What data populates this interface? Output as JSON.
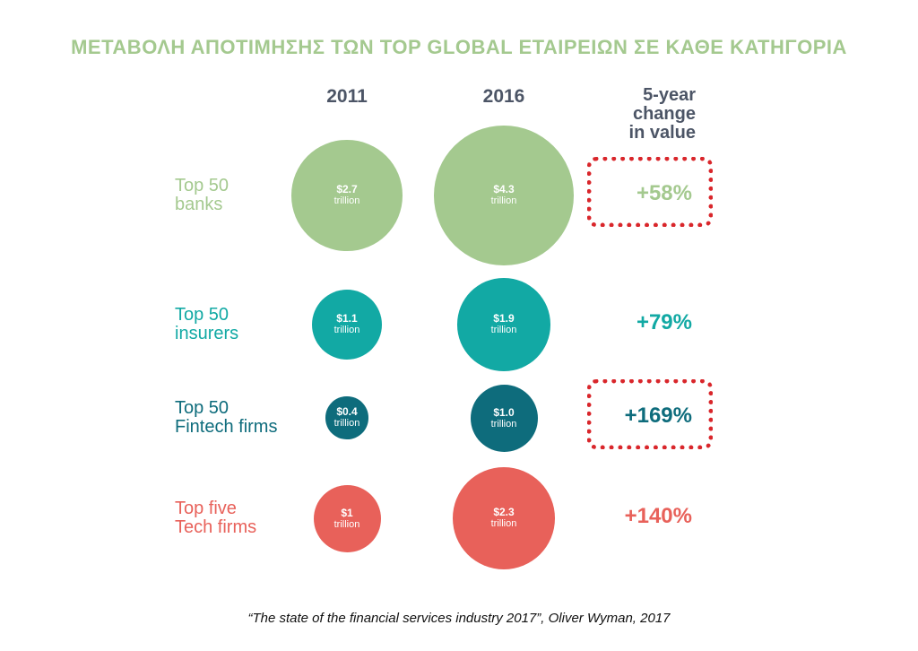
{
  "title": "ΜΕΤΑΒΟΛΗ ΑΠΟΤΙΜΗΣΗΣ ΤΩΝ TOP GLOBAL ΕΤΑΙΡΕΙΩΝ ΣΕ ΚΑΘΕ ΚΑΤΗΓΟΡΙΑ",
  "columns": {
    "y2011": "2011",
    "y2016": "2016"
  },
  "change_header": [
    "5-year",
    "change",
    "in value"
  ],
  "source": "“The state of the financial services industry 2017”, Oliver Wyman, 2017",
  "colors": {
    "title": "#a4c98f",
    "header": "#4c5566",
    "highlight": "#d9262b"
  },
  "chart_data": {
    "type": "bubble",
    "title": "ΜΕΤΑΒΟΛΗ ΑΠΟΤΙΜΗΣΗΣ ΤΩΝ TOP GLOBAL ΕΤΑΙΡΕΙΩΝ ΣΕ ΚΑΘΕ ΚΑΤΗΓΟΡΙΑ",
    "units": "trillion USD",
    "years": [
      "2011",
      "2016"
    ],
    "categories": [
      {
        "label_lines": [
          "Top 50",
          "banks"
        ],
        "color": "#a4c98f",
        "text_color": "#a4c98f",
        "v2011": 2.7,
        "v2011_label": "$2.7",
        "v2011_unit": "trillion",
        "v2016": 4.3,
        "v2016_label": "$4.3",
        "v2016_unit": "trillion",
        "change": "+58%",
        "highlighted": true
      },
      {
        "label_lines": [
          "Top 50",
          "insurers"
        ],
        "color": "#12a9a4",
        "text_color": "#12a9a4",
        "v2011": 1.1,
        "v2011_label": "$1.1",
        "v2011_unit": "trillion",
        "v2016": 1.9,
        "v2016_label": "$1.9",
        "v2016_unit": "trillion",
        "change": "+79%",
        "highlighted": false
      },
      {
        "label_lines": [
          "Top 50",
          "Fintech firms"
        ],
        "color": "#0e6c7c",
        "text_color": "#0e6c7c",
        "v2011": 0.4,
        "v2011_label": "$0.4",
        "v2011_unit": "trillion",
        "v2016": 1.0,
        "v2016_label": "$1.0",
        "v2016_unit": "trillion",
        "change": "+169%",
        "highlighted": true
      },
      {
        "label_lines": [
          "Top five",
          "Tech firms"
        ],
        "color": "#e8615a",
        "text_color": "#e8615a",
        "v2011": 1,
        "v2011_label": "$1",
        "v2011_unit": "trillion",
        "v2016": 2.3,
        "v2016_label": "$2.3",
        "v2016_unit": "trillion",
        "change": "+140%",
        "highlighted": false
      }
    ]
  }
}
